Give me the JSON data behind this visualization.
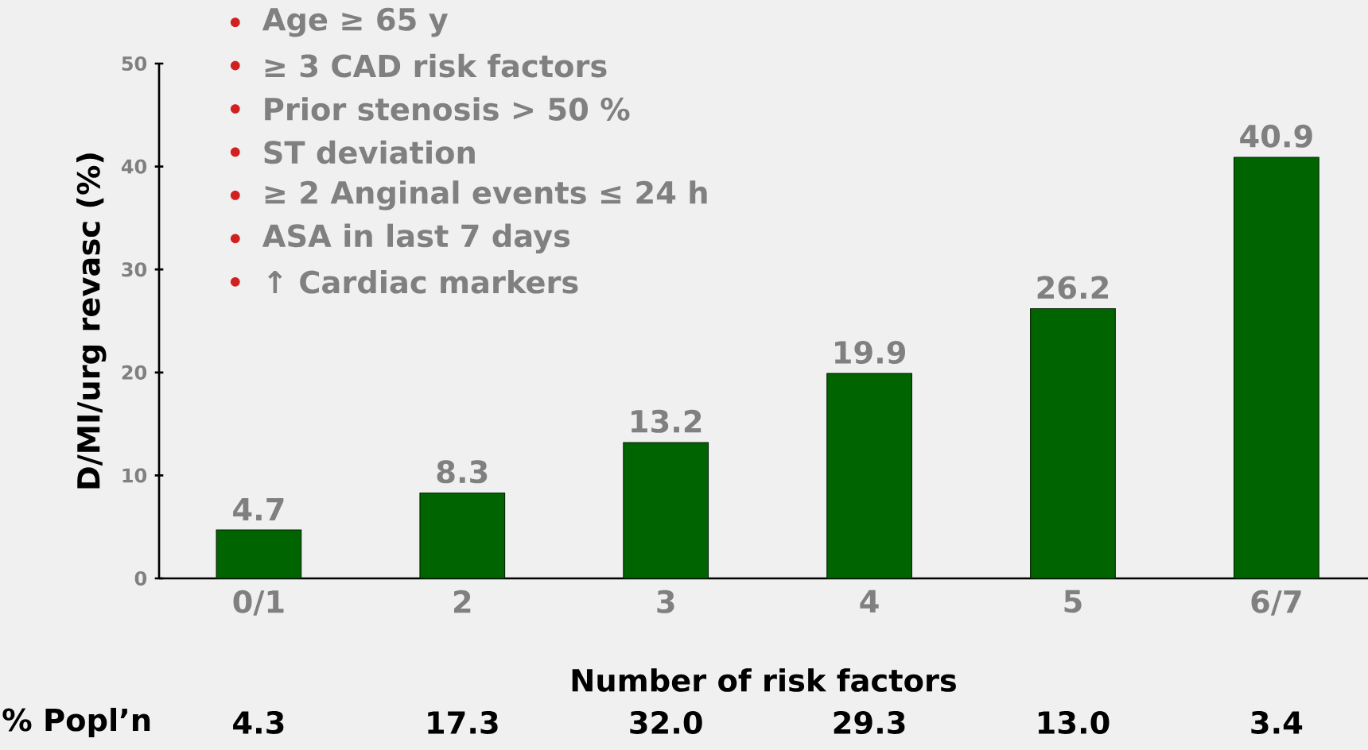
{
  "chart_data": {
    "type": "bar",
    "categories": [
      "0/1",
      "2",
      "3",
      "4",
      "5",
      "6/7"
    ],
    "values": [
      4.7,
      8.3,
      13.2,
      19.9,
      26.2,
      40.9
    ],
    "color": "#006400",
    "ylim": [
      0,
      50
    ],
    "yticks": [
      0,
      10,
      20,
      30,
      40,
      50
    ],
    "data_labels": true,
    "xlabel": "Number of risk factors",
    "ylabel": "D/MI/urg revasc (%)",
    "annotations": [
      "Age ≥ 65 y",
      "≥ 3 CAD risk factors",
      "Prior stenosis > 50 %",
      "ST deviation",
      "≥ 2 Anginal events ≤ 24 h",
      "ASA in last 7 days",
      "↑ Cardiac markers",
      "% Popl’n",
      "4.3",
      "17.3",
      "32.0",
      "29.3",
      "13.0",
      "3.4"
    ]
  }
}
